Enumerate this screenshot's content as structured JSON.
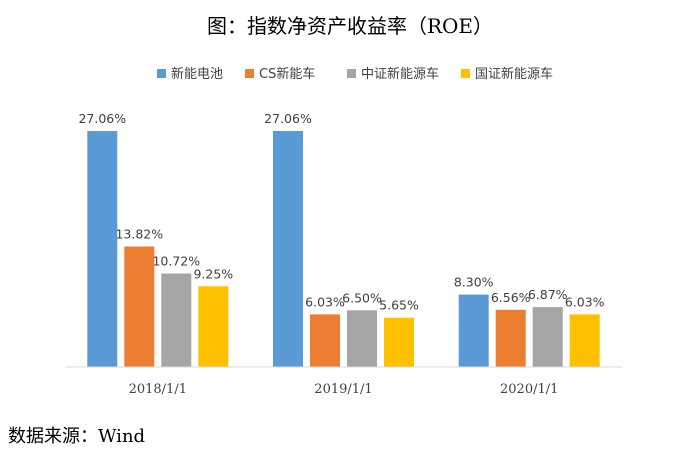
{
  "colors": {
    "series": [
      "#5b9bd5",
      "#ed7d31",
      "#a5a5a5",
      "#ffc000"
    ],
    "axis": "#d9d9d9",
    "text": "#404040"
  },
  "chart_data": {
    "type": "bar",
    "title": "图：指数净资产收益率（ROE）",
    "categories": [
      "2018/1/1",
      "2019/1/1",
      "2020/1/1"
    ],
    "series": [
      {
        "name": "新能电池",
        "values": [
          27.06,
          27.06,
          8.3
        ],
        "labels": [
          "27.06%",
          "27.06%",
          "8.30%"
        ]
      },
      {
        "name": "CS新能车",
        "values": [
          13.82,
          6.03,
          6.56
        ],
        "labels": [
          "13.82%",
          "6.03%",
          "6.56%"
        ]
      },
      {
        "name": "中证新能源车",
        "values": [
          10.72,
          6.5,
          6.87
        ],
        "labels": [
          "10.72%",
          "6.50%",
          "6.87%"
        ]
      },
      {
        "name": "国证新能源车",
        "values": [
          9.25,
          5.65,
          6.03
        ],
        "labels": [
          "9.25%",
          "5.65%",
          "6.03%"
        ]
      }
    ],
    "ylim": [
      0,
      30
    ],
    "legend": "top-center",
    "grid": false,
    "xlabel": "",
    "ylabel": ""
  },
  "source": "数据来源：Wind"
}
